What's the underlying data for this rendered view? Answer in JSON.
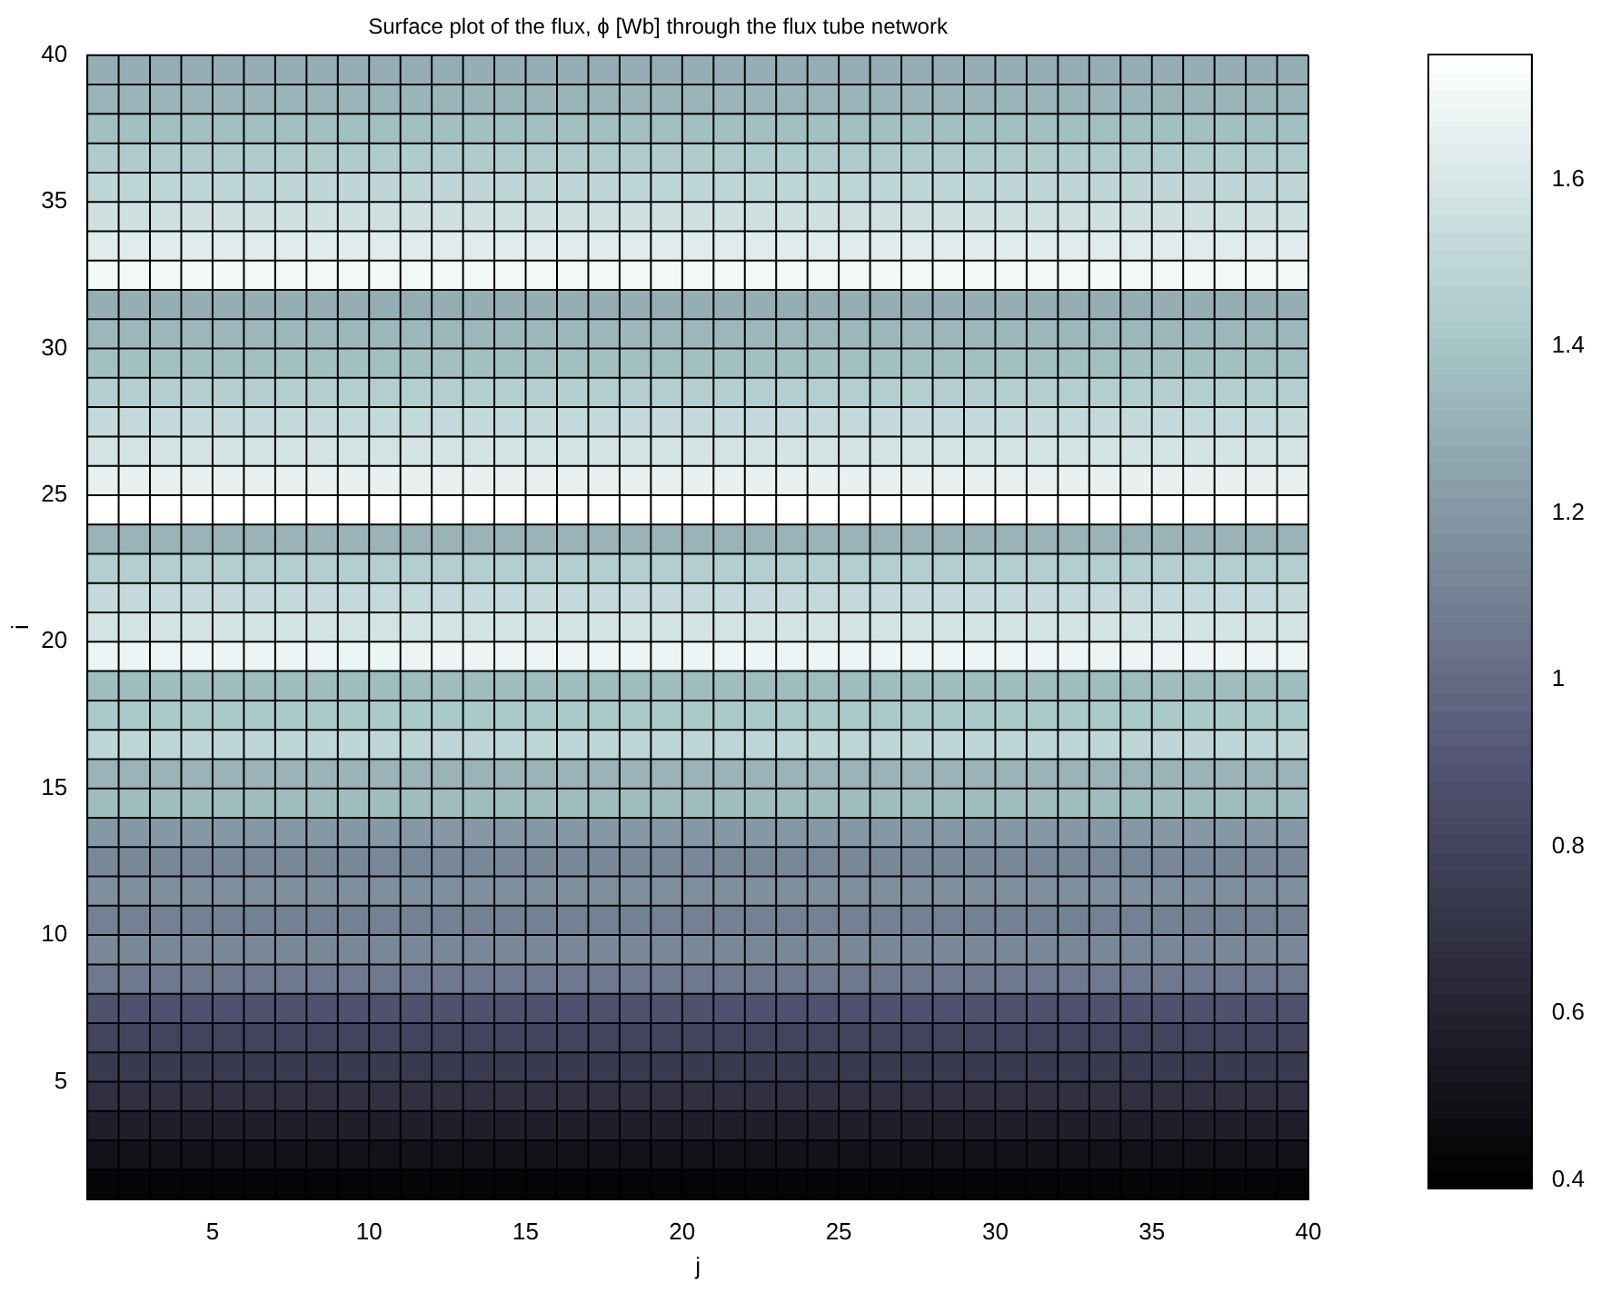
{
  "chart_data": {
    "type": "heatmap",
    "title": "Surface plot of the flux, ϕ [Wb] through the flux tube network",
    "xlabel": "j",
    "ylabel": "i",
    "xlim": [
      1,
      40
    ],
    "xticks": [
      5,
      10,
      15,
      20,
      25,
      30,
      35,
      40
    ],
    "ylim": [
      1,
      40
    ],
    "yticks": [
      5,
      10,
      15,
      20,
      25,
      30,
      35,
      40
    ],
    "grid": true,
    "clim": [
      0.39,
      1.75
    ],
    "cticks": [
      0.4,
      0.6,
      0.8,
      1,
      1.2,
      1.4,
      1.6
    ],
    "cells": [
      [
        1.3,
        1.3,
        1.3,
        1.3,
        1.3,
        1.3,
        1.3,
        1.3,
        1.3,
        1.3,
        1.3,
        1.3,
        1.3,
        1.3,
        1.3,
        1.3,
        1.3,
        1.3,
        1.3,
        1.3,
        1.3,
        1.3,
        1.3,
        1.3,
        1.3,
        1.3,
        1.3,
        1.3,
        1.3,
        1.3,
        1.3,
        1.3,
        1.3,
        1.3,
        1.3,
        1.3,
        1.3,
        1.3,
        1.3
      ],
      [
        1.33,
        1.33,
        1.33,
        1.33,
        1.33,
        1.33,
        1.33,
        1.33,
        1.33,
        1.33,
        1.33,
        1.33,
        1.33,
        1.33,
        1.33,
        1.33,
        1.33,
        1.33,
        1.33,
        1.33,
        1.33,
        1.33,
        1.33,
        1.33,
        1.33,
        1.33,
        1.33,
        1.33,
        1.33,
        1.33,
        1.33,
        1.33,
        1.33,
        1.33,
        1.33,
        1.33,
        1.33,
        1.33,
        1.33
      ],
      [
        1.38,
        1.38,
        1.38,
        1.38,
        1.38,
        1.38,
        1.38,
        1.38,
        1.38,
        1.38,
        1.38,
        1.38,
        1.38,
        1.38,
        1.38,
        1.38,
        1.38,
        1.38,
        1.38,
        1.38,
        1.38,
        1.38,
        1.38,
        1.38,
        1.38,
        1.38,
        1.38,
        1.38,
        1.38,
        1.38,
        1.38,
        1.38,
        1.38,
        1.38,
        1.38,
        1.38,
        1.38,
        1.38,
        1.38
      ],
      [
        1.44,
        1.44,
        1.44,
        1.44,
        1.44,
        1.44,
        1.44,
        1.44,
        1.44,
        1.44,
        1.44,
        1.44,
        1.44,
        1.44,
        1.44,
        1.44,
        1.44,
        1.44,
        1.44,
        1.44,
        1.44,
        1.44,
        1.44,
        1.44,
        1.44,
        1.44,
        1.44,
        1.44,
        1.44,
        1.44,
        1.44,
        1.44,
        1.44,
        1.44,
        1.44,
        1.44,
        1.44,
        1.44,
        1.44
      ],
      [
        1.5,
        1.5,
        1.5,
        1.5,
        1.5,
        1.5,
        1.5,
        1.5,
        1.5,
        1.5,
        1.5,
        1.5,
        1.5,
        1.5,
        1.5,
        1.5,
        1.5,
        1.5,
        1.5,
        1.5,
        1.5,
        1.5,
        1.5,
        1.5,
        1.5,
        1.5,
        1.5,
        1.5,
        1.5,
        1.5,
        1.5,
        1.5,
        1.5,
        1.5,
        1.5,
        1.5,
        1.5,
        1.5,
        1.5
      ],
      [
        1.56,
        1.56,
        1.56,
        1.56,
        1.56,
        1.56,
        1.56,
        1.56,
        1.56,
        1.56,
        1.56,
        1.56,
        1.56,
        1.56,
        1.56,
        1.56,
        1.56,
        1.56,
        1.56,
        1.56,
        1.56,
        1.56,
        1.56,
        1.56,
        1.56,
        1.56,
        1.56,
        1.56,
        1.56,
        1.56,
        1.56,
        1.56,
        1.56,
        1.56,
        1.56,
        1.56,
        1.56,
        1.56,
        1.56
      ],
      [
        1.63,
        1.63,
        1.63,
        1.63,
        1.63,
        1.63,
        1.63,
        1.63,
        1.63,
        1.63,
        1.63,
        1.63,
        1.63,
        1.63,
        1.63,
        1.63,
        1.63,
        1.63,
        1.63,
        1.63,
        1.63,
        1.63,
        1.63,
        1.63,
        1.63,
        1.63,
        1.63,
        1.63,
        1.63,
        1.63,
        1.63,
        1.63,
        1.63,
        1.63,
        1.63,
        1.63,
        1.63,
        1.63,
        1.63
      ],
      [
        1.7,
        1.7,
        1.7,
        1.7,
        1.7,
        1.7,
        1.7,
        1.7,
        1.7,
        1.7,
        1.7,
        1.7,
        1.7,
        1.7,
        1.7,
        1.7,
        1.7,
        1.7,
        1.7,
        1.7,
        1.7,
        1.7,
        1.7,
        1.7,
        1.7,
        1.7,
        1.7,
        1.7,
        1.7,
        1.7,
        1.7,
        1.7,
        1.7,
        1.7,
        1.7,
        1.7,
        1.7,
        1.7,
        1.7
      ],
      [
        1.3,
        1.3,
        1.3,
        1.3,
        1.3,
        1.3,
        1.3,
        1.3,
        1.3,
        1.3,
        1.3,
        1.3,
        1.3,
        1.3,
        1.3,
        1.3,
        1.3,
        1.3,
        1.3,
        1.3,
        1.3,
        1.3,
        1.3,
        1.3,
        1.3,
        1.3,
        1.3,
        1.3,
        1.3,
        1.3,
        1.3,
        1.3,
        1.3,
        1.3,
        1.3,
        1.3,
        1.3,
        1.3,
        1.3
      ],
      [
        1.34,
        1.34,
        1.34,
        1.34,
        1.34,
        1.34,
        1.34,
        1.34,
        1.34,
        1.34,
        1.34,
        1.34,
        1.34,
        1.34,
        1.34,
        1.34,
        1.34,
        1.34,
        1.34,
        1.34,
        1.34,
        1.34,
        1.34,
        1.34,
        1.34,
        1.34,
        1.34,
        1.34,
        1.34,
        1.34,
        1.34,
        1.34,
        1.34,
        1.34,
        1.34,
        1.34,
        1.34,
        1.34,
        1.34
      ],
      [
        1.38,
        1.38,
        1.38,
        1.38,
        1.38,
        1.38,
        1.38,
        1.38,
        1.38,
        1.38,
        1.38,
        1.38,
        1.38,
        1.38,
        1.38,
        1.38,
        1.38,
        1.38,
        1.38,
        1.38,
        1.38,
        1.38,
        1.38,
        1.38,
        1.38,
        1.38,
        1.38,
        1.38,
        1.38,
        1.38,
        1.38,
        1.38,
        1.38,
        1.38,
        1.38,
        1.38,
        1.38,
        1.38,
        1.38
      ],
      [
        1.45,
        1.45,
        1.45,
        1.45,
        1.45,
        1.45,
        1.45,
        1.45,
        1.45,
        1.45,
        1.45,
        1.45,
        1.45,
        1.45,
        1.45,
        1.45,
        1.45,
        1.45,
        1.45,
        1.45,
        1.45,
        1.45,
        1.45,
        1.45,
        1.45,
        1.45,
        1.45,
        1.45,
        1.45,
        1.45,
        1.45,
        1.45,
        1.45,
        1.45,
        1.45,
        1.45,
        1.45,
        1.45,
        1.45
      ],
      [
        1.52,
        1.52,
        1.52,
        1.52,
        1.52,
        1.52,
        1.52,
        1.52,
        1.52,
        1.52,
        1.52,
        1.52,
        1.52,
        1.52,
        1.52,
        1.52,
        1.52,
        1.52,
        1.52,
        1.52,
        1.52,
        1.52,
        1.52,
        1.52,
        1.52,
        1.52,
        1.52,
        1.52,
        1.52,
        1.52,
        1.52,
        1.52,
        1.52,
        1.52,
        1.52,
        1.52,
        1.52,
        1.52,
        1.52
      ],
      [
        1.58,
        1.58,
        1.58,
        1.58,
        1.58,
        1.58,
        1.58,
        1.58,
        1.58,
        1.58,
        1.58,
        1.58,
        1.58,
        1.58,
        1.58,
        1.58,
        1.58,
        1.58,
        1.58,
        1.58,
        1.58,
        1.58,
        1.58,
        1.58,
        1.58,
        1.58,
        1.58,
        1.58,
        1.58,
        1.58,
        1.58,
        1.58,
        1.58,
        1.58,
        1.58,
        1.58,
        1.58,
        1.58,
        1.58
      ],
      [
        1.66,
        1.66,
        1.66,
        1.66,
        1.66,
        1.66,
        1.66,
        1.66,
        1.66,
        1.66,
        1.66,
        1.66,
        1.66,
        1.66,
        1.66,
        1.66,
        1.66,
        1.66,
        1.66,
        1.66,
        1.66,
        1.66,
        1.66,
        1.66,
        1.66,
        1.66,
        1.66,
        1.66,
        1.66,
        1.66,
        1.66,
        1.66,
        1.66,
        1.66,
        1.66,
        1.66,
        1.66,
        1.66,
        1.66
      ],
      [
        1.75,
        1.75,
        1.75,
        1.75,
        1.75,
        1.75,
        1.75,
        1.75,
        1.75,
        1.75,
        1.75,
        1.75,
        1.75,
        1.75,
        1.75,
        1.75,
        1.75,
        1.75,
        1.75,
        1.75,
        1.75,
        1.75,
        1.75,
        1.75,
        1.75,
        1.75,
        1.75,
        1.75,
        1.75,
        1.75,
        1.75,
        1.75,
        1.75,
        1.75,
        1.75,
        1.75,
        1.75,
        1.75,
        1.75
      ],
      [
        1.32,
        1.32,
        1.32,
        1.32,
        1.32,
        1.32,
        1.32,
        1.32,
        1.32,
        1.32,
        1.32,
        1.32,
        1.32,
        1.32,
        1.32,
        1.32,
        1.32,
        1.32,
        1.32,
        1.32,
        1.32,
        1.32,
        1.32,
        1.32,
        1.32,
        1.32,
        1.32,
        1.32,
        1.32,
        1.32,
        1.32,
        1.32,
        1.32,
        1.32,
        1.32,
        1.32,
        1.32,
        1.32,
        1.32
      ],
      [
        1.45,
        1.45,
        1.45,
        1.45,
        1.45,
        1.45,
        1.45,
        1.45,
        1.45,
        1.45,
        1.45,
        1.45,
        1.45,
        1.45,
        1.45,
        1.45,
        1.45,
        1.45,
        1.45,
        1.45,
        1.45,
        1.45,
        1.45,
        1.45,
        1.45,
        1.45,
        1.45,
        1.45,
        1.45,
        1.45,
        1.45,
        1.45,
        1.45,
        1.45,
        1.45,
        1.45,
        1.45,
        1.45,
        1.45
      ],
      [
        1.52,
        1.52,
        1.52,
        1.52,
        1.52,
        1.52,
        1.52,
        1.52,
        1.52,
        1.52,
        1.52,
        1.52,
        1.52,
        1.52,
        1.52,
        1.52,
        1.52,
        1.52,
        1.52,
        1.52,
        1.52,
        1.52,
        1.52,
        1.52,
        1.52,
        1.52,
        1.52,
        1.52,
        1.52,
        1.52,
        1.52,
        1.52,
        1.52,
        1.52,
        1.52,
        1.52,
        1.52,
        1.52,
        1.52
      ],
      [
        1.58,
        1.58,
        1.58,
        1.58,
        1.58,
        1.58,
        1.58,
        1.58,
        1.58,
        1.58,
        1.58,
        1.58,
        1.58,
        1.58,
        1.58,
        1.58,
        1.58,
        1.58,
        1.58,
        1.58,
        1.58,
        1.58,
        1.58,
        1.58,
        1.58,
        1.58,
        1.58,
        1.58,
        1.58,
        1.58,
        1.58,
        1.58,
        1.58,
        1.58,
        1.58,
        1.58,
        1.58,
        1.58,
        1.58
      ],
      [
        1.68,
        1.68,
        1.68,
        1.68,
        1.68,
        1.68,
        1.68,
        1.68,
        1.68,
        1.68,
        1.68,
        1.68,
        1.68,
        1.68,
        1.68,
        1.68,
        1.68,
        1.68,
        1.68,
        1.68,
        1.68,
        1.68,
        1.68,
        1.68,
        1.68,
        1.68,
        1.68,
        1.68,
        1.68,
        1.68,
        1.68,
        1.68,
        1.68,
        1.68,
        1.68,
        1.68,
        1.68,
        1.68,
        1.68
      ],
      [
        1.36,
        1.36,
        1.36,
        1.36,
        1.36,
        1.36,
        1.36,
        1.36,
        1.36,
        1.36,
        1.36,
        1.36,
        1.36,
        1.36,
        1.36,
        1.36,
        1.36,
        1.36,
        1.36,
        1.36,
        1.36,
        1.36,
        1.36,
        1.36,
        1.36,
        1.36,
        1.36,
        1.36,
        1.36,
        1.36,
        1.36,
        1.36,
        1.36,
        1.36,
        1.36,
        1.36,
        1.36,
        1.36,
        1.36
      ],
      [
        1.42,
        1.42,
        1.42,
        1.42,
        1.42,
        1.42,
        1.42,
        1.42,
        1.42,
        1.42,
        1.42,
        1.42,
        1.42,
        1.42,
        1.42,
        1.42,
        1.42,
        1.42,
        1.42,
        1.42,
        1.42,
        1.42,
        1.42,
        1.42,
        1.42,
        1.42,
        1.42,
        1.42,
        1.42,
        1.42,
        1.42,
        1.42,
        1.42,
        1.42,
        1.42,
        1.42,
        1.42,
        1.42,
        1.42
      ],
      [
        1.5,
        1.5,
        1.5,
        1.5,
        1.5,
        1.5,
        1.5,
        1.5,
        1.5,
        1.5,
        1.5,
        1.5,
        1.5,
        1.5,
        1.5,
        1.5,
        1.5,
        1.5,
        1.5,
        1.5,
        1.5,
        1.5,
        1.5,
        1.5,
        1.5,
        1.5,
        1.5,
        1.5,
        1.5,
        1.5,
        1.5,
        1.5,
        1.5,
        1.5,
        1.5,
        1.5,
        1.5,
        1.5,
        1.5
      ],
      [
        1.32,
        1.32,
        1.32,
        1.32,
        1.32,
        1.32,
        1.32,
        1.32,
        1.32,
        1.32,
        1.32,
        1.32,
        1.32,
        1.32,
        1.32,
        1.32,
        1.32,
        1.32,
        1.32,
        1.32,
        1.32,
        1.32,
        1.32,
        1.32,
        1.32,
        1.32,
        1.32,
        1.32,
        1.32,
        1.32,
        1.32,
        1.32,
        1.32,
        1.32,
        1.32,
        1.32,
        1.32,
        1.32,
        1.32
      ],
      [
        1.36,
        1.36,
        1.36,
        1.36,
        1.36,
        1.36,
        1.36,
        1.36,
        1.36,
        1.36,
        1.36,
        1.36,
        1.36,
        1.36,
        1.36,
        1.36,
        1.36,
        1.36,
        1.36,
        1.36,
        1.36,
        1.36,
        1.36,
        1.36,
        1.36,
        1.36,
        1.36,
        1.36,
        1.36,
        1.36,
        1.36,
        1.36,
        1.36,
        1.36,
        1.36,
        1.36,
        1.36,
        1.36,
        1.36
      ],
      [
        1.2,
        1.2,
        1.2,
        1.2,
        1.2,
        1.2,
        1.2,
        1.2,
        1.2,
        1.2,
        1.2,
        1.2,
        1.2,
        1.2,
        1.2,
        1.2,
        1.2,
        1.2,
        1.2,
        1.2,
        1.2,
        1.2,
        1.2,
        1.2,
        1.2,
        1.2,
        1.2,
        1.2,
        1.2,
        1.2,
        1.2,
        1.2,
        1.2,
        1.2,
        1.2,
        1.2,
        1.2,
        1.2,
        1.2
      ],
      [
        1.13,
        1.13,
        1.13,
        1.13,
        1.13,
        1.13,
        1.13,
        1.13,
        1.13,
        1.13,
        1.13,
        1.13,
        1.13,
        1.13,
        1.13,
        1.13,
        1.13,
        1.13,
        1.13,
        1.13,
        1.13,
        1.13,
        1.13,
        1.13,
        1.13,
        1.13,
        1.13,
        1.13,
        1.13,
        1.13,
        1.13,
        1.13,
        1.13,
        1.13,
        1.13,
        1.13,
        1.13,
        1.13,
        1.13
      ],
      [
        1.16,
        1.16,
        1.16,
        1.16,
        1.16,
        1.16,
        1.16,
        1.16,
        1.16,
        1.16,
        1.16,
        1.16,
        1.16,
        1.16,
        1.16,
        1.16,
        1.16,
        1.16,
        1.16,
        1.16,
        1.16,
        1.16,
        1.16,
        1.16,
        1.16,
        1.16,
        1.16,
        1.16,
        1.16,
        1.16,
        1.16,
        1.16,
        1.16,
        1.16,
        1.16,
        1.16,
        1.16,
        1.16,
        1.16
      ],
      [
        1.1,
        1.1,
        1.1,
        1.1,
        1.1,
        1.1,
        1.1,
        1.1,
        1.1,
        1.1,
        1.1,
        1.1,
        1.1,
        1.1,
        1.1,
        1.1,
        1.1,
        1.1,
        1.1,
        1.1,
        1.1,
        1.1,
        1.1,
        1.1,
        1.1,
        1.1,
        1.1,
        1.1,
        1.1,
        1.1,
        1.1,
        1.1,
        1.1,
        1.1,
        1.1,
        1.1,
        1.1,
        1.1,
        1.1
      ],
      [
        1.13,
        1.13,
        1.13,
        1.13,
        1.13,
        1.13,
        1.13,
        1.13,
        1.13,
        1.13,
        1.13,
        1.13,
        1.13,
        1.13,
        1.13,
        1.13,
        1.13,
        1.13,
        1.13,
        1.13,
        1.13,
        1.13,
        1.13,
        1.13,
        1.13,
        1.13,
        1.13,
        1.13,
        1.13,
        1.13,
        1.13,
        1.13,
        1.13,
        1.13,
        1.13,
        1.13,
        1.13,
        1.13,
        1.13
      ],
      [
        1.06,
        1.06,
        1.06,
        1.06,
        1.06,
        1.06,
        1.06,
        1.06,
        1.06,
        1.06,
        1.06,
        1.06,
        1.06,
        1.06,
        1.06,
        1.06,
        1.06,
        1.06,
        1.06,
        1.06,
        1.06,
        1.06,
        1.06,
        1.06,
        1.06,
        1.06,
        1.06,
        1.06,
        1.06,
        1.06,
        1.06,
        1.06,
        1.06,
        1.06,
        1.06,
        1.06,
        1.06,
        1.06,
        1.06
      ],
      [
        0.88,
        0.88,
        0.88,
        0.88,
        0.88,
        0.88,
        0.88,
        0.88,
        0.88,
        0.88,
        0.88,
        0.88,
        0.88,
        0.88,
        0.88,
        0.88,
        0.88,
        0.88,
        0.88,
        0.88,
        0.88,
        0.88,
        0.88,
        0.88,
        0.88,
        0.88,
        0.88,
        0.88,
        0.88,
        0.88,
        0.88,
        0.88,
        0.88,
        0.88,
        0.88,
        0.88,
        0.88,
        0.88,
        0.88
      ],
      [
        0.8,
        0.8,
        0.8,
        0.8,
        0.8,
        0.8,
        0.8,
        0.8,
        0.8,
        0.8,
        0.8,
        0.8,
        0.8,
        0.8,
        0.8,
        0.8,
        0.8,
        0.8,
        0.8,
        0.8,
        0.8,
        0.8,
        0.8,
        0.8,
        0.8,
        0.8,
        0.8,
        0.8,
        0.8,
        0.8,
        0.8,
        0.8,
        0.8,
        0.8,
        0.8,
        0.8,
        0.8,
        0.8,
        0.8
      ],
      [
        0.74,
        0.74,
        0.74,
        0.74,
        0.74,
        0.74,
        0.74,
        0.74,
        0.74,
        0.74,
        0.74,
        0.74,
        0.74,
        0.74,
        0.74,
        0.74,
        0.74,
        0.74,
        0.74,
        0.74,
        0.74,
        0.74,
        0.74,
        0.74,
        0.74,
        0.74,
        0.74,
        0.74,
        0.74,
        0.74,
        0.74,
        0.74,
        0.74,
        0.74,
        0.74,
        0.74,
        0.74,
        0.74,
        0.74
      ],
      [
        0.68,
        0.68,
        0.68,
        0.68,
        0.68,
        0.68,
        0.68,
        0.68,
        0.68,
        0.68,
        0.68,
        0.68,
        0.68,
        0.68,
        0.68,
        0.68,
        0.68,
        0.68,
        0.68,
        0.68,
        0.68,
        0.68,
        0.68,
        0.68,
        0.68,
        0.68,
        0.68,
        0.68,
        0.68,
        0.68,
        0.68,
        0.68,
        0.68,
        0.68,
        0.68,
        0.68,
        0.68,
        0.68,
        0.68
      ],
      [
        0.58,
        0.58,
        0.58,
        0.58,
        0.58,
        0.58,
        0.58,
        0.58,
        0.58,
        0.58,
        0.58,
        0.58,
        0.58,
        0.58,
        0.58,
        0.58,
        0.58,
        0.58,
        0.58,
        0.58,
        0.58,
        0.58,
        0.58,
        0.58,
        0.58,
        0.58,
        0.58,
        0.58,
        0.58,
        0.58,
        0.58,
        0.58,
        0.58,
        0.58,
        0.58,
        0.58,
        0.58,
        0.58,
        0.58
      ],
      [
        0.5,
        0.5,
        0.5,
        0.5,
        0.5,
        0.5,
        0.5,
        0.5,
        0.5,
        0.5,
        0.5,
        0.5,
        0.5,
        0.5,
        0.5,
        0.5,
        0.5,
        0.5,
        0.5,
        0.5,
        0.5,
        0.5,
        0.5,
        0.5,
        0.5,
        0.5,
        0.5,
        0.5,
        0.5,
        0.5,
        0.5,
        0.5,
        0.5,
        0.5,
        0.5,
        0.5,
        0.5,
        0.5,
        0.5
      ],
      [
        0.42,
        0.42,
        0.42,
        0.42,
        0.42,
        0.42,
        0.42,
        0.42,
        0.42,
        0.42,
        0.42,
        0.42,
        0.42,
        0.42,
        0.42,
        0.42,
        0.42,
        0.42,
        0.42,
        0.42,
        0.42,
        0.42,
        0.42,
        0.42,
        0.42,
        0.42,
        0.42,
        0.42,
        0.42,
        0.42,
        0.42,
        0.42,
        0.42,
        0.42,
        0.42,
        0.42,
        0.42,
        0.42,
        0.42
      ]
    ]
  }
}
